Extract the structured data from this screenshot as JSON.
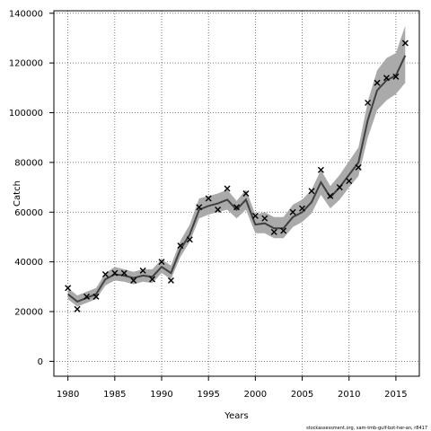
{
  "chart_data": {
    "type": "line",
    "xlabel": "Years",
    "ylabel": "Catch",
    "credit": "stockassessment.org, sam-tmb-gulf-bot-her-an, r8417",
    "xlim": [
      1978.5,
      2017.5
    ],
    "ylim": [
      -6000,
      141000
    ],
    "x_ticks": [
      1980,
      1985,
      1990,
      1995,
      2000,
      2005,
      2010,
      2015
    ],
    "y_ticks": [
      0,
      20000,
      40000,
      60000,
      80000,
      100000,
      120000,
      140000
    ],
    "grid": true,
    "colors": {
      "band": "#aaaaaa",
      "line": "#404040",
      "obs": "#000000",
      "grid": "#555555"
    },
    "series": [
      {
        "kind": "fitted",
        "x": [
          1980,
          1981,
          1982,
          1983,
          1984,
          1985,
          1986,
          1987,
          1988,
          1989,
          1990,
          1991,
          1992,
          1993,
          1994,
          1995,
          1996,
          1997,
          1998,
          1999,
          2000,
          2001,
          2002,
          2003,
          2004,
          2005,
          2006,
          2007,
          2008,
          2009,
          2010,
          2011,
          2012,
          2013,
          2014,
          2015,
          2016
        ],
        "y": [
          27000,
          24000,
          25500,
          27000,
          33000,
          35000,
          34500,
          33500,
          34500,
          34000,
          38000,
          35500,
          45000,
          51000,
          61000,
          62500,
          63500,
          65000,
          61000,
          65000,
          55000,
          55500,
          53500,
          53500,
          58000,
          60000,
          64000,
          72000,
          66000,
          70000,
          75000,
          80000,
          97000,
          109000,
          113000,
          115000,
          123000
        ],
        "lower": [
          25000,
          22000,
          23500,
          25000,
          30500,
          32500,
          32000,
          31000,
          32000,
          31500,
          35500,
          33000,
          42000,
          48000,
          57500,
          59000,
          60000,
          61000,
          57500,
          61000,
          51500,
          51500,
          49500,
          49500,
          54000,
          56000,
          59500,
          67000,
          61500,
          65000,
          70000,
          74500,
          90000,
          101000,
          105000,
          107500,
          112000
        ],
        "upper": [
          29500,
          26500,
          28000,
          29500,
          35500,
          38000,
          37000,
          36000,
          37000,
          37000,
          41000,
          38500,
          48500,
          55000,
          65500,
          66500,
          67500,
          69000,
          64500,
          69000,
          59000,
          60000,
          58000,
          58000,
          63000,
          65000,
          69000,
          77000,
          70500,
          75000,
          80500,
          86000,
          104500,
          117000,
          122000,
          124000,
          135000
        ]
      },
      {
        "kind": "observed",
        "x": [
          1980,
          1981,
          1982,
          1983,
          1984,
          1985,
          1986,
          1987,
          1988,
          1989,
          1990,
          1991,
          1992,
          1993,
          1994,
          1995,
          1996,
          1997,
          1998,
          1999,
          2000,
          2001,
          2002,
          2003,
          2004,
          2005,
          2006,
          2007,
          2008,
          2009,
          2010,
          2011,
          2012,
          2013,
          2014,
          2015,
          2016
        ],
        "y": [
          29500,
          21000,
          26000,
          26000,
          35000,
          35500,
          35500,
          32500,
          36500,
          33000,
          40000,
          32500,
          46500,
          49000,
          62000,
          65500,
          61000,
          69500,
          62000,
          67500,
          58500,
          57500,
          52000,
          52500,
          60000,
          61500,
          68500,
          77000,
          66500,
          70000,
          72500,
          78000,
          104000,
          112000,
          114000,
          114500,
          128000
        ]
      }
    ]
  }
}
